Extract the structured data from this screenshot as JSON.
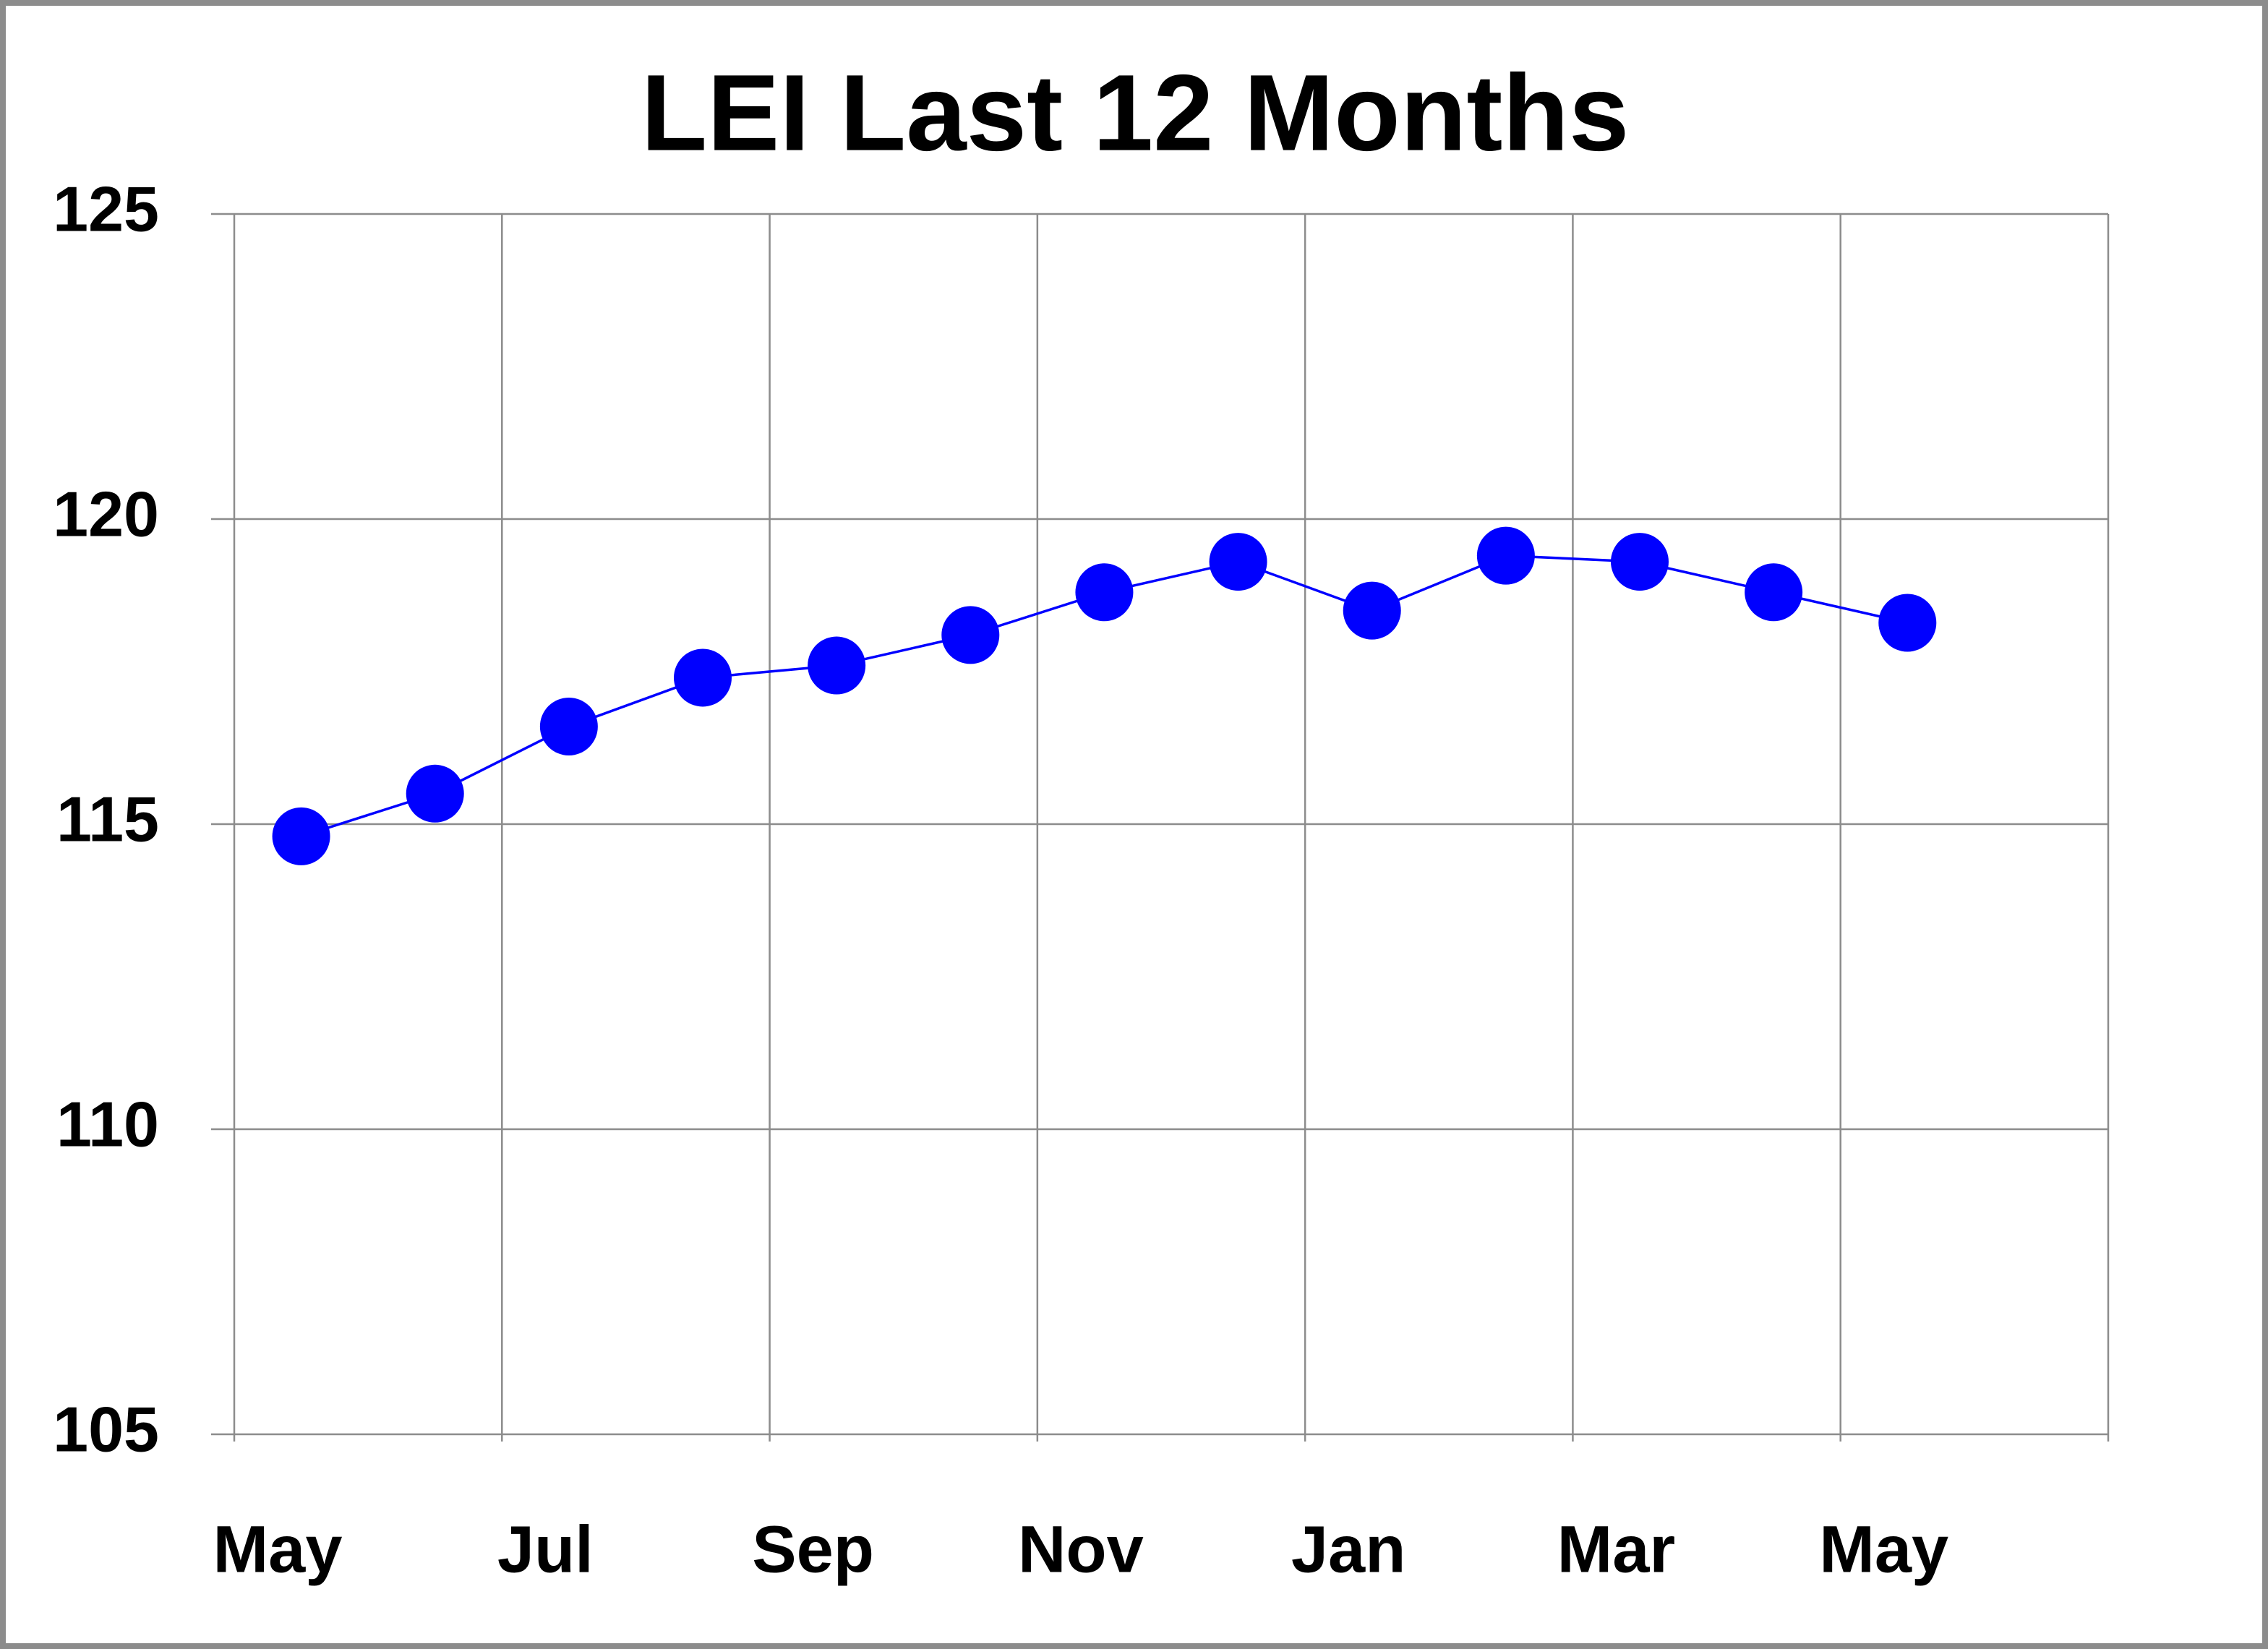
{
  "chart_data": {
    "type": "line",
    "title": "LEI Last 12 Months",
    "categories": [
      "May",
      null,
      "Jul",
      null,
      "Sep",
      null,
      "Nov",
      null,
      "Jan",
      null,
      "Mar",
      null,
      "May"
    ],
    "series": [
      {
        "name": "LEI",
        "color": "#0000ff",
        "values": [
          114.8,
          115.5,
          116.6,
          117.4,
          117.6,
          118.1,
          118.8,
          119.3,
          118.5,
          119.4,
          119.3,
          118.8,
          118.3
        ]
      }
    ],
    "ylim": [
      105,
      125
    ],
    "yticks": [
      105,
      110,
      115,
      120,
      125
    ],
    "grid": true
  }
}
